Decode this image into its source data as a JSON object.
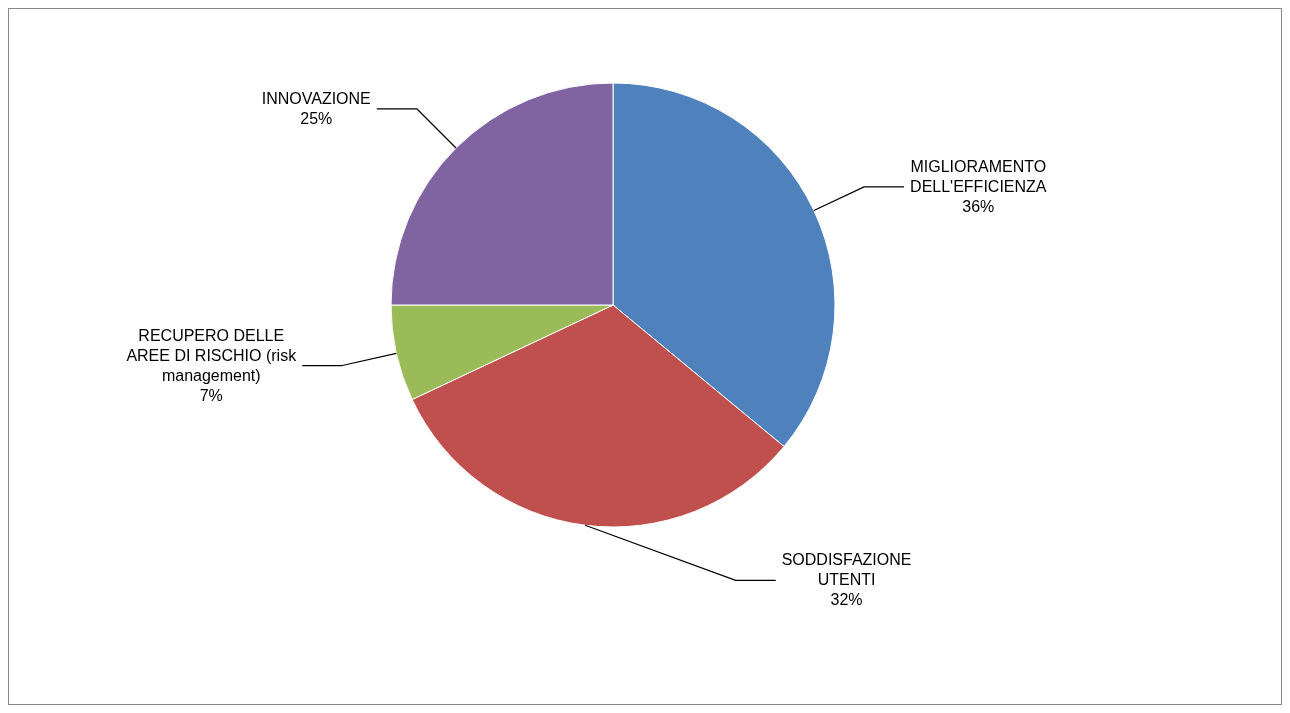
{
  "chart_data": {
    "type": "pie",
    "categories": [
      "MIGLIORAMENTO DELL'EFFICIENZA",
      "SODDISFAZIONE UTENTI",
      "RECUPERO DELLE AREE DI RISCHIO (risk management)",
      "INNOVAZIONE"
    ],
    "values": [
      36,
      32,
      7,
      25
    ],
    "value_labels": [
      "36%",
      "32%",
      "7%",
      "25%"
    ],
    "colors": [
      "#4f81bd",
      "#c0504d",
      "#9bbb59",
      "#8064a2"
    ]
  }
}
